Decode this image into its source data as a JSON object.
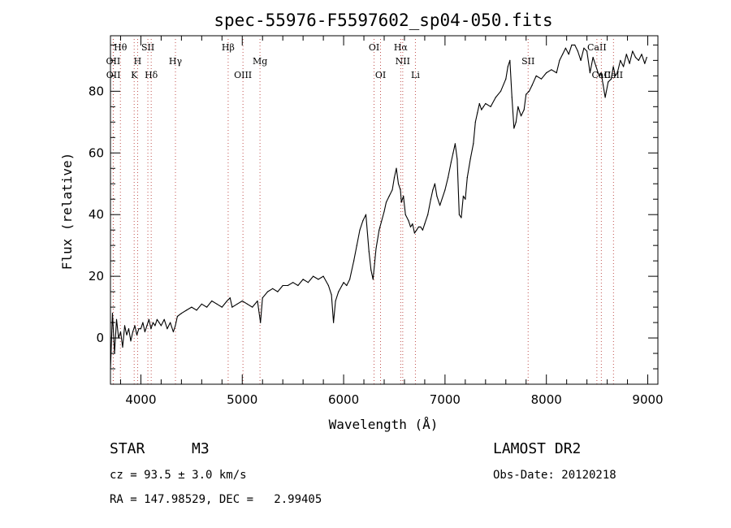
{
  "chart_data": {
    "type": "line",
    "title": "spec-55976-F5597602_sp04-050.fits",
    "xlabel": "Wavelength (Å)",
    "ylabel": "Flux (relative)",
    "xlim": [
      3700,
      9100
    ],
    "ylim": [
      -15,
      98
    ],
    "x_ticks": [
      4000,
      5000,
      6000,
      7000,
      8000,
      9000
    ],
    "y_ticks": [
      0,
      20,
      40,
      60,
      80
    ],
    "x_tick_labels": [
      "4000",
      "5000",
      "6000",
      "7000",
      "8000",
      "9000"
    ],
    "y_tick_labels": [
      "0",
      "20",
      "40",
      "60",
      "80"
    ],
    "grid": false,
    "series": [
      {
        "x": [
          3700,
          3720,
          3740,
          3760,
          3780,
          3800,
          3820,
          3840,
          3860,
          3880,
          3900,
          3920,
          3940,
          3960,
          3980,
          4000,
          4020,
          4040,
          4060,
          4080,
          4100,
          4120,
          4140,
          4160,
          4180,
          4200,
          4230,
          4260,
          4290,
          4320,
          4340,
          4360,
          4400,
          4450,
          4500,
          4550,
          4600,
          4650,
          4700,
          4750,
          4800,
          4850,
          4880,
          4900,
          4950,
          5000,
          5050,
          5100,
          5150,
          5180,
          5200,
          5250,
          5300,
          5350,
          5400,
          5450,
          5500,
          5550,
          5600,
          5650,
          5700,
          5750,
          5800,
          5850,
          5880,
          5900,
          5920,
          5950,
          6000,
          6030,
          6060,
          6100,
          6130,
          6160,
          6190,
          6220,
          6250,
          6270,
          6290,
          6320,
          6350,
          6400,
          6420,
          6450,
          6480,
          6500,
          6520,
          6540,
          6560,
          6570,
          6590,
          6610,
          6640,
          6660,
          6680,
          6700,
          6720,
          6740,
          6760,
          6780,
          6800,
          6830,
          6860,
          6880,
          6900,
          6920,
          6950,
          7000,
          7030,
          7060,
          7080,
          7100,
          7120,
          7140,
          7160,
          7180,
          7200,
          7220,
          7250,
          7280,
          7300,
          7320,
          7340,
          7360,
          7380,
          7400,
          7450,
          7500,
          7550,
          7600,
          7620,
          7640,
          7660,
          7680,
          7700,
          7720,
          7750,
          7780,
          7800,
          7830,
          7860,
          7900,
          7950,
          8000,
          8050,
          8100,
          8130,
          8160,
          8190,
          8220,
          8250,
          8280,
          8310,
          8340,
          8370,
          8400,
          8430,
          8460,
          8490,
          8520,
          8540,
          8560,
          8580,
          8610,
          8640,
          8660,
          8680,
          8700,
          8730,
          8760,
          8790,
          8820,
          8850,
          8880,
          8910,
          8940,
          8970,
          8990
        ],
        "values": [
          -10,
          8,
          -5,
          6,
          0,
          2,
          -3,
          4,
          1,
          3,
          -1,
          2,
          4,
          1,
          3,
          3,
          5,
          2,
          4,
          6,
          3,
          5,
          4,
          6,
          5,
          4,
          6,
          3,
          5,
          2,
          4,
          7,
          8,
          9,
          10,
          9,
          11,
          10,
          12,
          11,
          10,
          12,
          13,
          10,
          11,
          12,
          11,
          10,
          12,
          5,
          13,
          15,
          16,
          15,
          17,
          17,
          18,
          17,
          19,
          18,
          20,
          19,
          20,
          17,
          14,
          5,
          12,
          15,
          18,
          17,
          19,
          25,
          30,
          35,
          38,
          40,
          28,
          22,
          19,
          29,
          35,
          41,
          44,
          46,
          48,
          52,
          55,
          50,
          48,
          44,
          46,
          40,
          38,
          36,
          37,
          34,
          35,
          36,
          36,
          35,
          37,
          40,
          45,
          48,
          50,
          46,
          43,
          48,
          52,
          57,
          60,
          63,
          58,
          40,
          39,
          46,
          45,
          52,
          58,
          63,
          70,
          73,
          76,
          74,
          75,
          76,
          75,
          78,
          80,
          84,
          88,
          90,
          78,
          68,
          70,
          75,
          72,
          74,
          79,
          80,
          82,
          85,
          84,
          86,
          87,
          86,
          90,
          92,
          94,
          92,
          95,
          95,
          93,
          90,
          94,
          93,
          86,
          91,
          88,
          85,
          86,
          82,
          78,
          83,
          84,
          88,
          85,
          86,
          90,
          88,
          92,
          89,
          93,
          91,
          90,
          92,
          89,
          91
        ]
      }
    ],
    "line_markers": [
      {
        "label": "Hθ",
        "x": 3798,
        "row": 0
      },
      {
        "label": "OII",
        "x": 3727,
        "row": 1
      },
      {
        "label": "OII",
        "x": 3729,
        "row": 2
      },
      {
        "label": "H",
        "x": 3968,
        "row": 1
      },
      {
        "label": "K",
        "x": 3934,
        "row": 2
      },
      {
        "label": "SII",
        "x": 4069,
        "row": 0
      },
      {
        "label": "Hδ",
        "x": 4102,
        "row": 2
      },
      {
        "label": "Hγ",
        "x": 4341,
        "row": 1
      },
      {
        "label": "Hβ",
        "x": 4861,
        "row": 0
      },
      {
        "label": "OIII",
        "x": 5007,
        "row": 2
      },
      {
        "label": "Mg",
        "x": 5175,
        "row": 1
      },
      {
        "label": "OI",
        "x": 6300,
        "row": 0
      },
      {
        "label": "OI",
        "x": 6364,
        "row": 2
      },
      {
        "label": "Hα",
        "x": 6563,
        "row": 0
      },
      {
        "label": "NII",
        "x": 6583,
        "row": 1
      },
      {
        "label": "Li",
        "x": 6708,
        "row": 2
      },
      {
        "label": "SII",
        "x": 7820,
        "row": 1
      },
      {
        "label": "CaII",
        "x": 8498,
        "row": 0
      },
      {
        "label": "CaII",
        "x": 8542,
        "row": 2
      },
      {
        "label": "CaII",
        "x": 8662,
        "row": 2
      }
    ]
  },
  "info": {
    "object_class": "STAR",
    "subclass": "M3",
    "survey": "LAMOST DR2",
    "cz": "cz = 93.5 ± 3.0 km/s",
    "obs_date": "Obs-Date: 20120218",
    "coords": "RA = 147.98529, DEC =   2.99405"
  }
}
